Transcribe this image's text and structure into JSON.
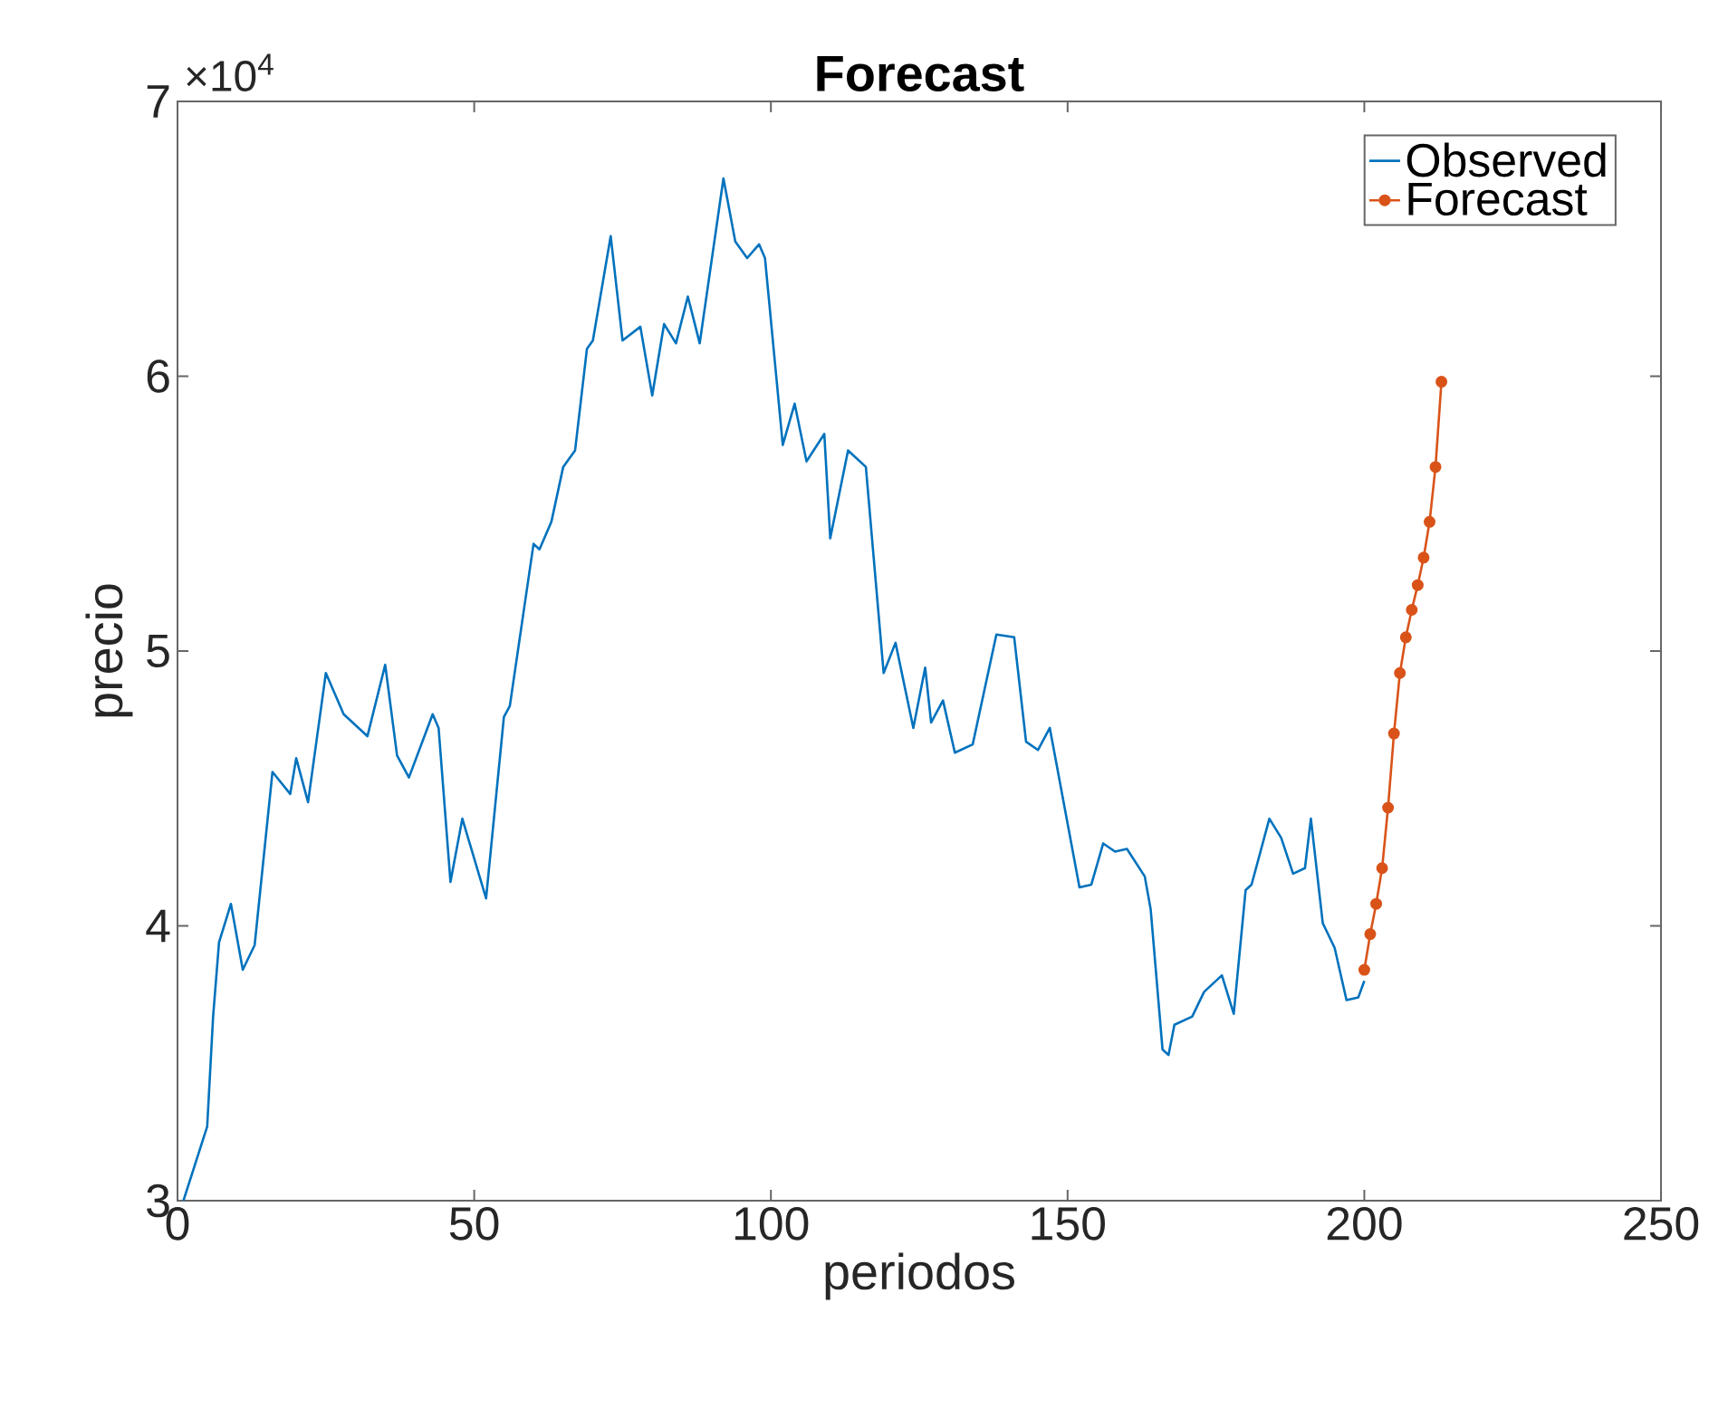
{
  "chart_data": {
    "type": "line",
    "title": "Forecast",
    "xlabel": "periodos",
    "ylabel": "precio",
    "annotations": [
      "×10$^{4}$"
    ],
    "xlim": [
      0,
      250
    ],
    "xticks": [
      0,
      50,
      100,
      150,
      200,
      250
    ],
    "ylim": [
      3,
      7
    ],
    "yticks": [
      3,
      4,
      5,
      6,
      7
    ],
    "legend": "top right",
    "line_style": "solid",
    "series": [
      {
        "name": "Observed",
        "color": "#0072bd",
        "marker": "none",
        "x": [
          1,
          5,
          6,
          7,
          9,
          11,
          13,
          16,
          19,
          20,
          22,
          25,
          28,
          32,
          35,
          37,
          39,
          43,
          44,
          46,
          48,
          52,
          55,
          56,
          60,
          61,
          63,
          65,
          67,
          69,
          70,
          73,
          75,
          78,
          80,
          82,
          84,
          86,
          88,
          92,
          94,
          96,
          98,
          99,
          102,
          104,
          106,
          109,
          110,
          113,
          116,
          119,
          121,
          124,
          126,
          127,
          129,
          131,
          134,
          138,
          141,
          143,
          145,
          147,
          152,
          154,
          156,
          158,
          160,
          163,
          164,
          166,
          167,
          168,
          171,
          173,
          176,
          178,
          180,
          181,
          184,
          186,
          188,
          190,
          191,
          193,
          195,
          197,
          199,
          200
        ],
        "values": [
          3.0,
          3.27,
          3.67,
          3.94,
          4.08,
          3.84,
          3.93,
          4.56,
          4.48,
          4.61,
          4.45,
          4.92,
          4.77,
          4.69,
          4.95,
          4.62,
          4.54,
          4.77,
          4.72,
          4.16,
          4.39,
          4.1,
          4.76,
          4.8,
          5.39,
          5.37,
          5.47,
          5.67,
          5.73,
          6.1,
          6.13,
          6.51,
          6.13,
          6.18,
          5.93,
          6.19,
          6.12,
          6.29,
          6.12,
          6.72,
          6.49,
          6.43,
          6.48,
          6.43,
          5.75,
          5.9,
          5.69,
          5.79,
          5.41,
          5.73,
          5.67,
          4.92,
          5.03,
          4.72,
          4.94,
          4.74,
          4.82,
          4.63,
          4.66,
          5.06,
          5.05,
          4.67,
          4.64,
          4.72,
          4.14,
          4.15,
          4.3,
          4.27,
          4.28,
          4.18,
          4.06,
          3.55,
          3.53,
          3.64,
          3.67,
          3.76,
          3.82,
          3.68,
          4.13,
          4.15,
          4.39,
          4.32,
          4.19,
          4.21,
          4.39,
          4.01,
          3.92,
          3.73,
          3.74,
          3.8
        ]
      },
      {
        "name": "Forecast",
        "color": "#d95319",
        "marker": "circle",
        "x": [
          200,
          201,
          202,
          203,
          204,
          205,
          206,
          207,
          208,
          209,
          210,
          211,
          212,
          213
        ],
        "values": [
          3.84,
          3.97,
          4.08,
          4.21,
          4.43,
          4.7,
          4.92,
          5.05,
          5.15,
          5.24,
          5.34,
          5.47,
          5.67,
          5.98
        ]
      }
    ]
  }
}
